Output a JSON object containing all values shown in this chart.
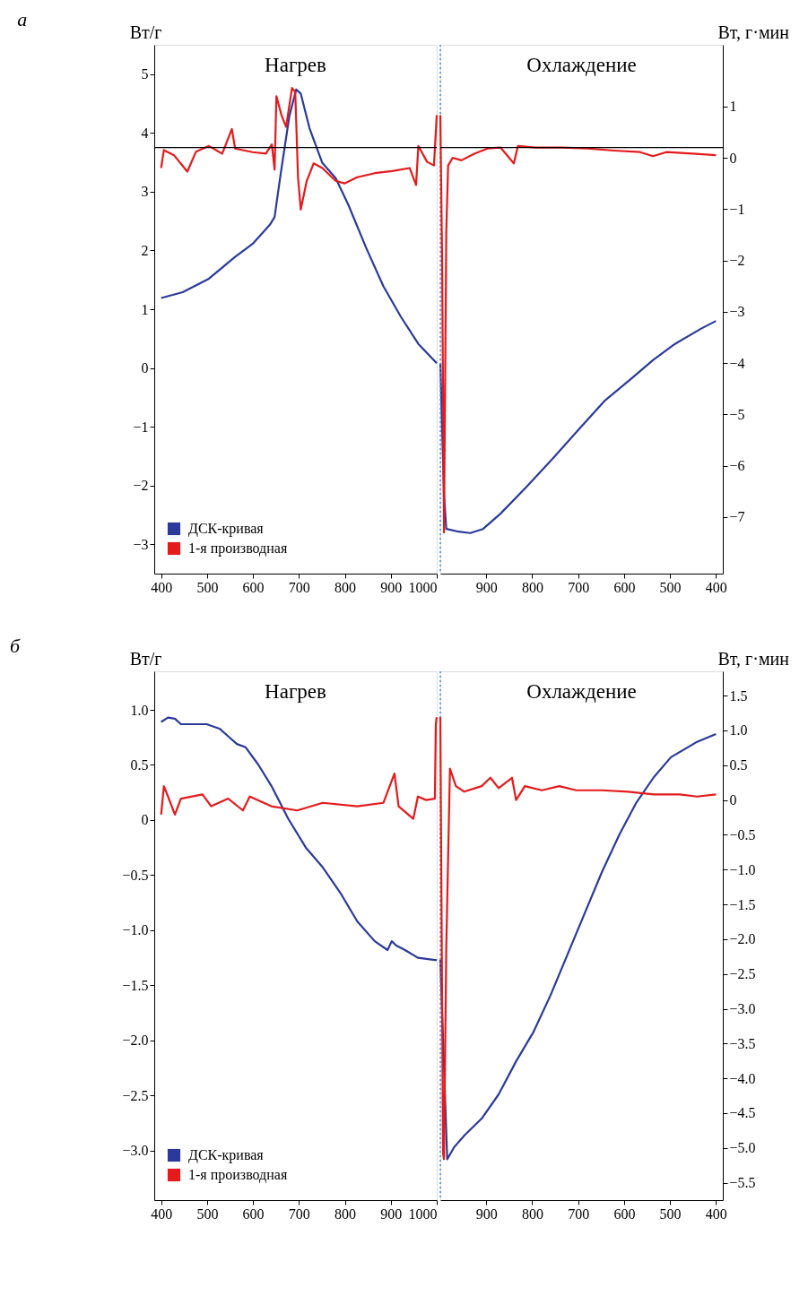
{
  "chart_data": [
    {
      "type": "line",
      "title": "а",
      "ylabel": "Вт/г",
      "annotations": [
        "Нагрев"
      ],
      "xlim": [
        385,
        1000
      ],
      "xticks": [
        400,
        500,
        600,
        700,
        800,
        900,
        1000
      ],
      "ylim": [
        -3.5,
        5.5
      ],
      "yticks": [
        -3,
        -2,
        -1,
        0,
        1,
        2,
        3,
        4,
        5
      ],
      "y2lim": [
        -8.1,
        2.2
      ],
      "legend": "bottom left",
      "ref_lines": [
        {
          "axis": "y2",
          "value": 0.2,
          "color": "#000000"
        }
      ],
      "series": [
        {
          "name": "ДСК-кривая",
          "color": "#2b3a9a",
          "axis": "y",
          "x": [
            400,
            447,
            504,
            561,
            599,
            637,
            647,
            660,
            679,
            694,
            704,
            723,
            751,
            780,
            808,
            846,
            884,
            922,
            960,
            1000
          ],
          "values": [
            1.19,
            1.29,
            1.52,
            1.89,
            2.11,
            2.44,
            2.57,
            3.29,
            4.28,
            4.74,
            4.67,
            4.08,
            3.49,
            3.23,
            2.77,
            2.05,
            1.39,
            0.87,
            0.41,
            0.08
          ]
        },
        {
          "name": "1-я производная",
          "color": "#e41a1c",
          "axis": "y2",
          "x": [
            400,
            406,
            428,
            457,
            476,
            504,
            533,
            554,
            561,
            599,
            628,
            641,
            647,
            651,
            662,
            672,
            685,
            692,
            698,
            704,
            717,
            732,
            751,
            780,
            799,
            827,
            865,
            903,
            941,
            955,
            960,
            979,
            994,
            1000
          ],
          "values": [
            -0.2,
            0.15,
            0.05,
            -0.27,
            0.12,
            0.23,
            0.08,
            0.56,
            0.18,
            0.11,
            0.08,
            0.26,
            -0.23,
            1.2,
            0.83,
            0.6,
            1.36,
            1.28,
            -0.38,
            -1.01,
            -0.45,
            -0.11,
            -0.2,
            -0.45,
            -0.5,
            -0.38,
            -0.3,
            -0.26,
            -0.2,
            -0.53,
            0.23,
            -0.08,
            -0.15,
            0.83
          ]
        }
      ]
    },
    {
      "type": "line",
      "y2label": "Вт, г·мин",
      "annotations": [
        "Охлаждение"
      ],
      "xlim": [
        1000,
        385
      ],
      "xticks": [
        900,
        800,
        700,
        600,
        500,
        400
      ],
      "ylim": [
        -3.5,
        5.5
      ],
      "y2lim": [
        -8.1,
        2.2
      ],
      "y2ticks": [
        -7,
        -6,
        -5,
        -4,
        -3,
        -2,
        -1,
        0,
        1
      ],
      "ref_lines": [
        {
          "axis": "y2",
          "value": 0.2,
          "color": "#000000"
        },
        {
          "axis": "x",
          "value": 1000,
          "color": "#4a90d9",
          "line_style": "dotted"
        }
      ],
      "series": [
        {
          "color": "#2b3a9a",
          "axis": "y",
          "x": [
            1000,
            992,
            987,
            964,
            935,
            907,
            869,
            812,
            755,
            698,
            641,
            584,
            536,
            489,
            432,
            400
          ],
          "values": [
            0.08,
            -2.15,
            -2.74,
            -2.78,
            -2.81,
            -2.74,
            -2.48,
            -2.02,
            -1.54,
            -1.04,
            -0.55,
            -0.18,
            0.14,
            0.41,
            0.67,
            0.8
          ]
        },
        {
          "color": "#e41a1c",
          "axis": "y2",
          "x": [
            1000,
            996,
            992,
            987,
            983,
            973,
            954,
            926,
            897,
            869,
            840,
            831,
            793,
            736,
            679,
            622,
            565,
            537,
            508,
            451,
            400
          ],
          "values": [
            0.83,
            -2.04,
            -7.3,
            -1.43,
            -0.15,
            0,
            -0.05,
            0.08,
            0.18,
            0.2,
            -0.11,
            0.23,
            0.2,
            0.2,
            0.18,
            0.14,
            0.11,
            0.03,
            0.11,
            0.08,
            0.05
          ]
        }
      ]
    },
    {
      "type": "line",
      "title": "б",
      "ylabel": "Вт/г",
      "annotations": [
        "Нагрев"
      ],
      "xlim": [
        385,
        1000
      ],
      "xticks": [
        400,
        500,
        600,
        700,
        800,
        900,
        1000
      ],
      "ylim": [
        -3.45,
        1.35
      ],
      "yticks": [
        {
          "value": -3,
          "label": "−3.0"
        },
        -2.5,
        {
          "value": -2,
          "label": "−2.0"
        },
        -1.5,
        {
          "value": -1,
          "label": "−1.0"
        },
        -0.5,
        0,
        0.5,
        {
          "value": 1,
          "label": "1.0"
        }
      ],
      "y2lim": [
        -5.75,
        1.85
      ],
      "legend": "bottom left",
      "series": [
        {
          "name": "ДСК-кривая",
          "color": "#2b3a9a",
          "axis": "y",
          "x": [
            400,
            415,
            430,
            443,
            499,
            527,
            565,
            584,
            612,
            640,
            677,
            715,
            752,
            790,
            827,
            865,
            893,
            902,
            912,
            931,
            959,
            996,
            1000
          ],
          "values": [
            0.89,
            0.93,
            0.92,
            0.87,
            0.87,
            0.83,
            0.69,
            0.66,
            0.5,
            0.31,
            0.01,
            -0.25,
            -0.43,
            -0.66,
            -0.92,
            -1.1,
            -1.18,
            -1.1,
            -1.14,
            -1.18,
            -1.25,
            -1.27,
            -1.27
          ]
        },
        {
          "name": "1-я производная",
          "color": "#e41a1c",
          "axis": "y2",
          "x": [
            400,
            406,
            415,
            430,
            443,
            490,
            509,
            546,
            578,
            593,
            640,
            696,
            752,
            827,
            884,
            908,
            917,
            949,
            959,
            977,
            996,
            998,
            1000
          ],
          "values": [
            -0.21,
            0.2,
            0.05,
            -0.21,
            0.02,
            0.08,
            -0.09,
            0.02,
            -0.15,
            0.05,
            -0.09,
            -0.15,
            -0.04,
            -0.09,
            -0.04,
            0.38,
            -0.09,
            -0.27,
            0.05,
            0,
            0.02,
            1.09,
            1.19
          ]
        }
      ]
    },
    {
      "type": "line",
      "y2label": "Вт, г·мин",
      "annotations": [
        "Охлаждение"
      ],
      "xlim": [
        1000,
        385
      ],
      "xticks": [
        900,
        800,
        700,
        600,
        500,
        400
      ],
      "ylim": [
        -3.45,
        1.35
      ],
      "y2lim": [
        -5.75,
        1.85
      ],
      "y2ticks": [
        -5.5,
        {
          "value": -5,
          "label": "−5.0"
        },
        -4.5,
        {
          "value": -4,
          "label": "−4.0"
        },
        -3.5,
        {
          "value": -3,
          "label": "−3.0"
        },
        -2.5,
        {
          "value": -2,
          "label": "−2.0"
        },
        -1.5,
        {
          "value": -1,
          "label": "−1.0"
        },
        -0.5,
        0,
        0.5,
        {
          "value": 1,
          "label": "1.0"
        },
        1.5
      ],
      "ref_lines": [
        {
          "axis": "x",
          "value": 1000,
          "color": "#4a90d9",
          "line_style": "dotted"
        }
      ],
      "series": [
        {
          "color": "#2b3a9a",
          "axis": "y",
          "x": [
            1000,
            985,
            970,
            947,
            910,
            873,
            835,
            798,
            760,
            723,
            685,
            648,
            610,
            573,
            535,
            498,
            441,
            400
          ],
          "values": [
            -1.27,
            -3.08,
            -2.97,
            -2.86,
            -2.71,
            -2.49,
            -2.19,
            -1.93,
            -1.59,
            -1.22,
            -0.84,
            -0.47,
            -0.13,
            0.16,
            0.39,
            0.57,
            0.71,
            0.78
          ]
        },
        {
          "color": "#e41a1c",
          "axis": "y2",
          "x": [
            1000,
            994,
            992,
            987,
            979,
            966,
            948,
            910,
            891,
            873,
            844,
            835,
            816,
            779,
            741,
            704,
            648,
            591,
            535,
            479,
            441,
            400
          ],
          "values": [
            1.19,
            -5.08,
            -5.16,
            -2.11,
            0.45,
            0.2,
            0.12,
            0.2,
            0.32,
            0.17,
            0.32,
            0,
            0.2,
            0.14,
            0.2,
            0.14,
            0.14,
            0.12,
            0.08,
            0.08,
            0.05,
            0.08
          ]
        }
      ]
    }
  ]
}
